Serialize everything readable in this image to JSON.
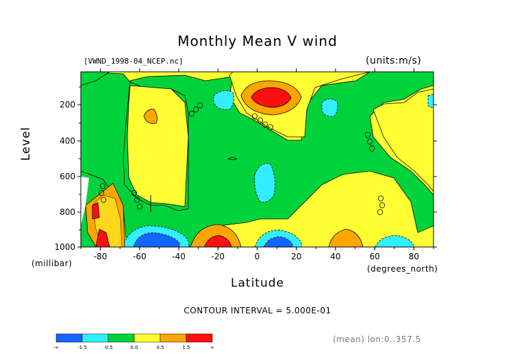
{
  "chart_data": {
    "type": "heatmap",
    "title": "Monthly Mean V wind",
    "file_label": "[VWND_1998-04_NCEP.nc]",
    "units_label": "(units:m/s)",
    "xlabel": "Latitude",
    "xlabel_units": "(degrees_north)",
    "ylabel": "Level",
    "ylabel_units": "(millibar)",
    "xlim": [
      -90,
      90
    ],
    "ylim": [
      1000,
      0
    ],
    "y_scale": "log-pressure",
    "x_ticks": [
      -80,
      -60,
      -40,
      -20,
      0,
      20,
      40,
      60,
      80
    ],
    "x_tick_labels": [
      "-80",
      "-60",
      "-40",
      "-20",
      "0",
      "20",
      "40",
      "60",
      "80"
    ],
    "y_ticks": [
      200,
      400,
      600,
      800,
      1000
    ],
    "y_tick_labels": [
      "200",
      "400",
      "600",
      "800",
      "1000"
    ],
    "contour_interval_label": "CONTOUR INTERVAL = 5.000E-01",
    "mean_label": "(mean) lon:0..357.5",
    "colorbar": {
      "colors": [
        "#1565ff",
        "#33eeff",
        "#00d23c",
        "#ffff33",
        "#ffa600",
        "#ff1010"
      ],
      "tick_labels": [
        "-∞",
        "-1.5",
        "-0.5",
        "0.0",
        "0.5",
        "1.5",
        "∞"
      ]
    },
    "features": [
      {
        "name": "northern-tropical-max",
        "lat": 8,
        "level": 160,
        "value": 1.5
      },
      {
        "name": "southern-surface-max",
        "lat": -18,
        "level": 975,
        "value": 1.0
      },
      {
        "name": "polar-south-max",
        "lat": -82,
        "level": 900,
        "value": 1.5
      },
      {
        "name": "southern-surface-min",
        "lat": -52,
        "level": 960,
        "value": -1.5
      },
      {
        "name": "northern-surface-min",
        "lat": 8,
        "level": 960,
        "value": -1.0
      },
      {
        "name": "northern-midlat-min",
        "lat": 68,
        "level": 970,
        "value": -0.5
      }
    ]
  }
}
